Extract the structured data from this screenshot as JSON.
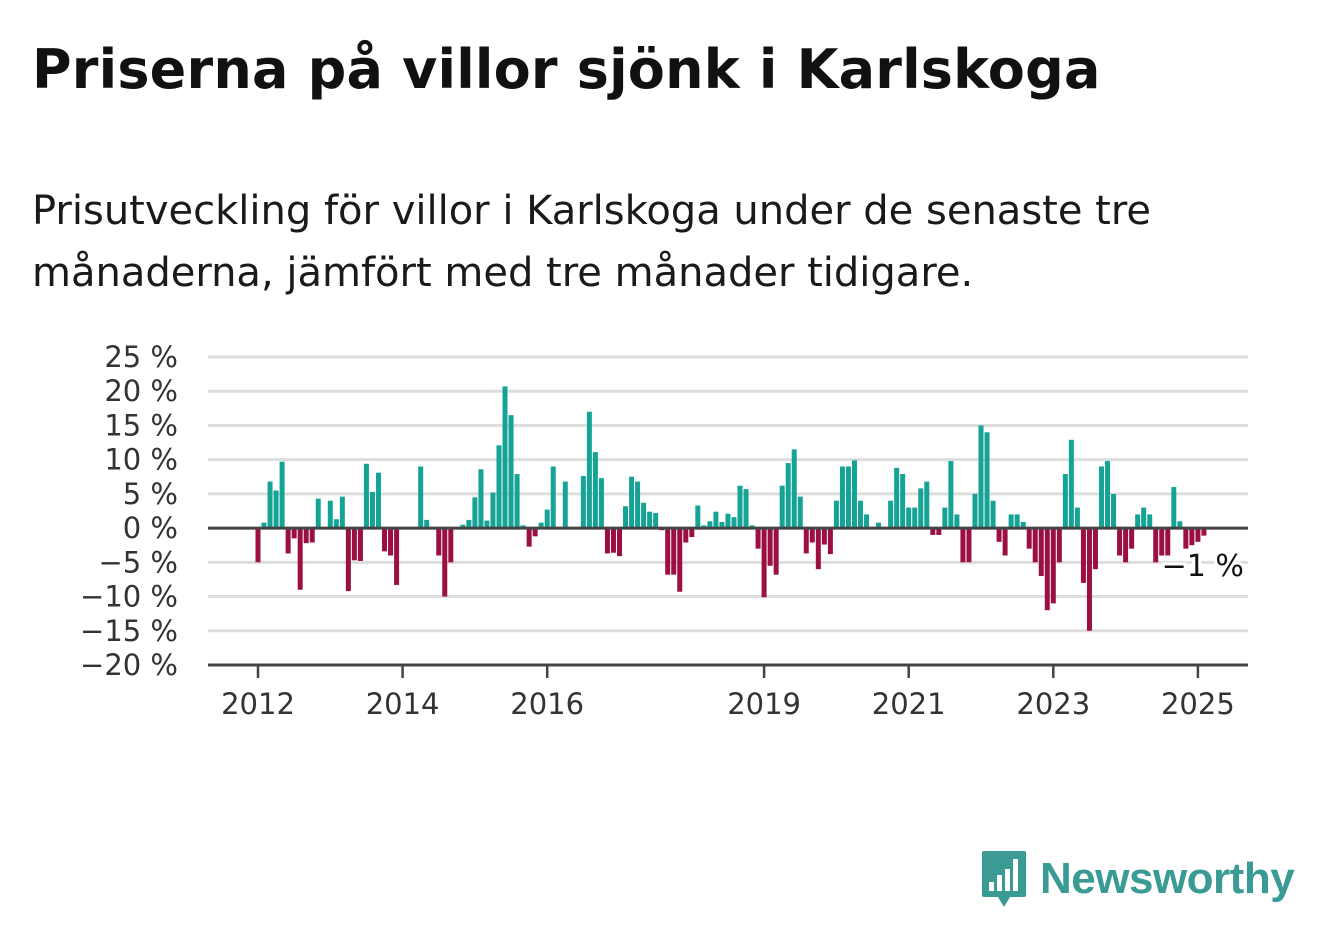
{
  "colors": {
    "positive": "#15a396",
    "negative": "#9c0f45",
    "zero_line": "#444444",
    "grid": "#dddddd",
    "brand": "#3a9a94"
  },
  "header": {
    "title": "Priserna på villor sjönk i Karlskoga",
    "subtitle": "Prisutveckling för villor i Karlskoga under de senaste tre månaderna, jämfört med tre månader tidigare."
  },
  "chart_data": {
    "type": "bar",
    "title": "Priserna på villor sjönk i Karlskoga",
    "subtitle": "Prisutveckling för villor i Karlskoga under de senaste tre månaderna, jämfört med tre månader tidigare.",
    "xlabel": "",
    "ylabel": "",
    "ylim": [
      -20,
      25
    ],
    "y_ticks": [
      25,
      20,
      15,
      10,
      5,
      0,
      -5,
      -10,
      -15,
      -20
    ],
    "y_tick_labels": [
      "25 %",
      "20 %",
      "15 %",
      "10 %",
      "5 %",
      "0 %",
      "−5 %",
      "−10 %",
      "−15 %",
      "−20 %"
    ],
    "x_tick_labels": [
      "2012",
      "2014",
      "2016",
      "2019",
      "2021",
      "2023",
      "2025"
    ],
    "x_tick_dates": [
      "2012-01",
      "2014-01",
      "2016-01",
      "2019-01",
      "2021-01",
      "2023-01",
      "2025-01"
    ],
    "x_range": [
      "2011-05",
      "2025-06"
    ],
    "grid": true,
    "start_month": "2012-01",
    "values": [
      -5,
      0.8,
      6.8,
      5.5,
      9.7,
      -3.7,
      -1.5,
      -9,
      -2.2,
      -2.1,
      4.3,
      0,
      4,
      1.3,
      4.6,
      -9.2,
      -4.7,
      -4.8,
      9.4,
      5.3,
      8.1,
      -3.4,
      -4,
      -8.3,
      0,
      0,
      0,
      9,
      1.2,
      0,
      -4,
      -10,
      -5,
      0,
      0.5,
      1.2,
      4.5,
      8.6,
      1.1,
      5.2,
      12.1,
      20.7,
      16.5,
      7.9,
      0.4,
      -2.7,
      -1.2,
      0.8,
      2.7,
      9,
      0,
      6.8,
      0,
      0,
      7.6,
      17,
      11.1,
      7.3,
      -3.7,
      -3.6,
      -4.1,
      3.2,
      7.5,
      6.8,
      3.7,
      2.4,
      2.2,
      -0.3,
      -6.8,
      -6.8,
      -9.3,
      -2.1,
      -1.3,
      3.3,
      0.4,
      1,
      2.4,
      0.9,
      2.1,
      1.6,
      6.2,
      5.7,
      0.4,
      -3,
      -10.1,
      -5.5,
      -6.8,
      6.2,
      9.5,
      11.5,
      4.6,
      -3.7,
      -2.1,
      -6,
      -2.4,
      -3.8,
      4,
      9,
      9,
      9.9,
      4,
      2,
      0,
      0.8,
      0,
      4,
      8.8,
      7.9,
      3,
      3,
      5.8,
      6.8,
      -1,
      -1,
      3,
      9.8,
      2,
      -5,
      -5,
      5,
      15,
      14,
      4,
      -2,
      -4,
      2,
      2,
      0.9,
      -3,
      -5,
      -7,
      -12,
      -11,
      -5,
      7.9,
      12.9,
      3,
      -8,
      -15,
      -6,
      9,
      9.8,
      5,
      -4,
      -5,
      -3,
      2,
      3,
      2,
      -5,
      -4,
      -4,
      6,
      1,
      -3,
      -2.5,
      -2,
      -1.1
    ],
    "last_value_label": "−1 %"
  }
}
